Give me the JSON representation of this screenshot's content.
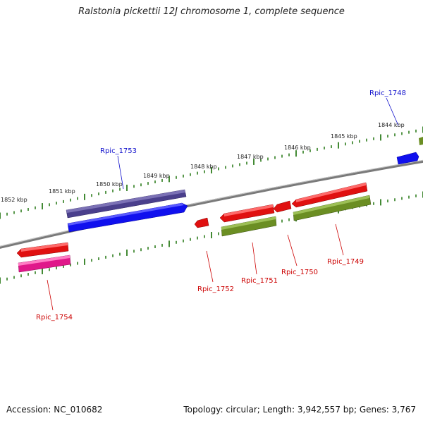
{
  "title": "Ralstonia pickettii 12J chromosome 1, complete sequence",
  "footer": {
    "accession": "Accession: NC_010682",
    "summary": "Topology: circular; Length: 3,942,557 bp; Genes: 3,767"
  },
  "colors": {
    "backbone": "#8a8a8a",
    "tick": "#2e7d1e",
    "forward_gene": "#1010ee",
    "forward_gene_alt": "#4a3f8c",
    "reverse_gene": "#e01010",
    "reverse_gene_alt": "#e0188a",
    "reverse_cds": "#6b8e23",
    "forward_label": "#1010cc",
    "reverse_label": "#cc0000"
  },
  "scale_labels": [
    "1852 kbp",
    "1851 kbp",
    "1850 kbp",
    "1849 kbp",
    "1848 kbp",
    "1847 kbp",
    "1846 kbp",
    "1845 kbp",
    "1844 kbp"
  ],
  "forward_genes": [
    "Rpic_1753",
    "Rpic_1748"
  ],
  "reverse_genes": [
    "Rpic_1754",
    "Rpic_1752",
    "Rpic_1751",
    "Rpic_1750",
    "Rpic_1749"
  ]
}
